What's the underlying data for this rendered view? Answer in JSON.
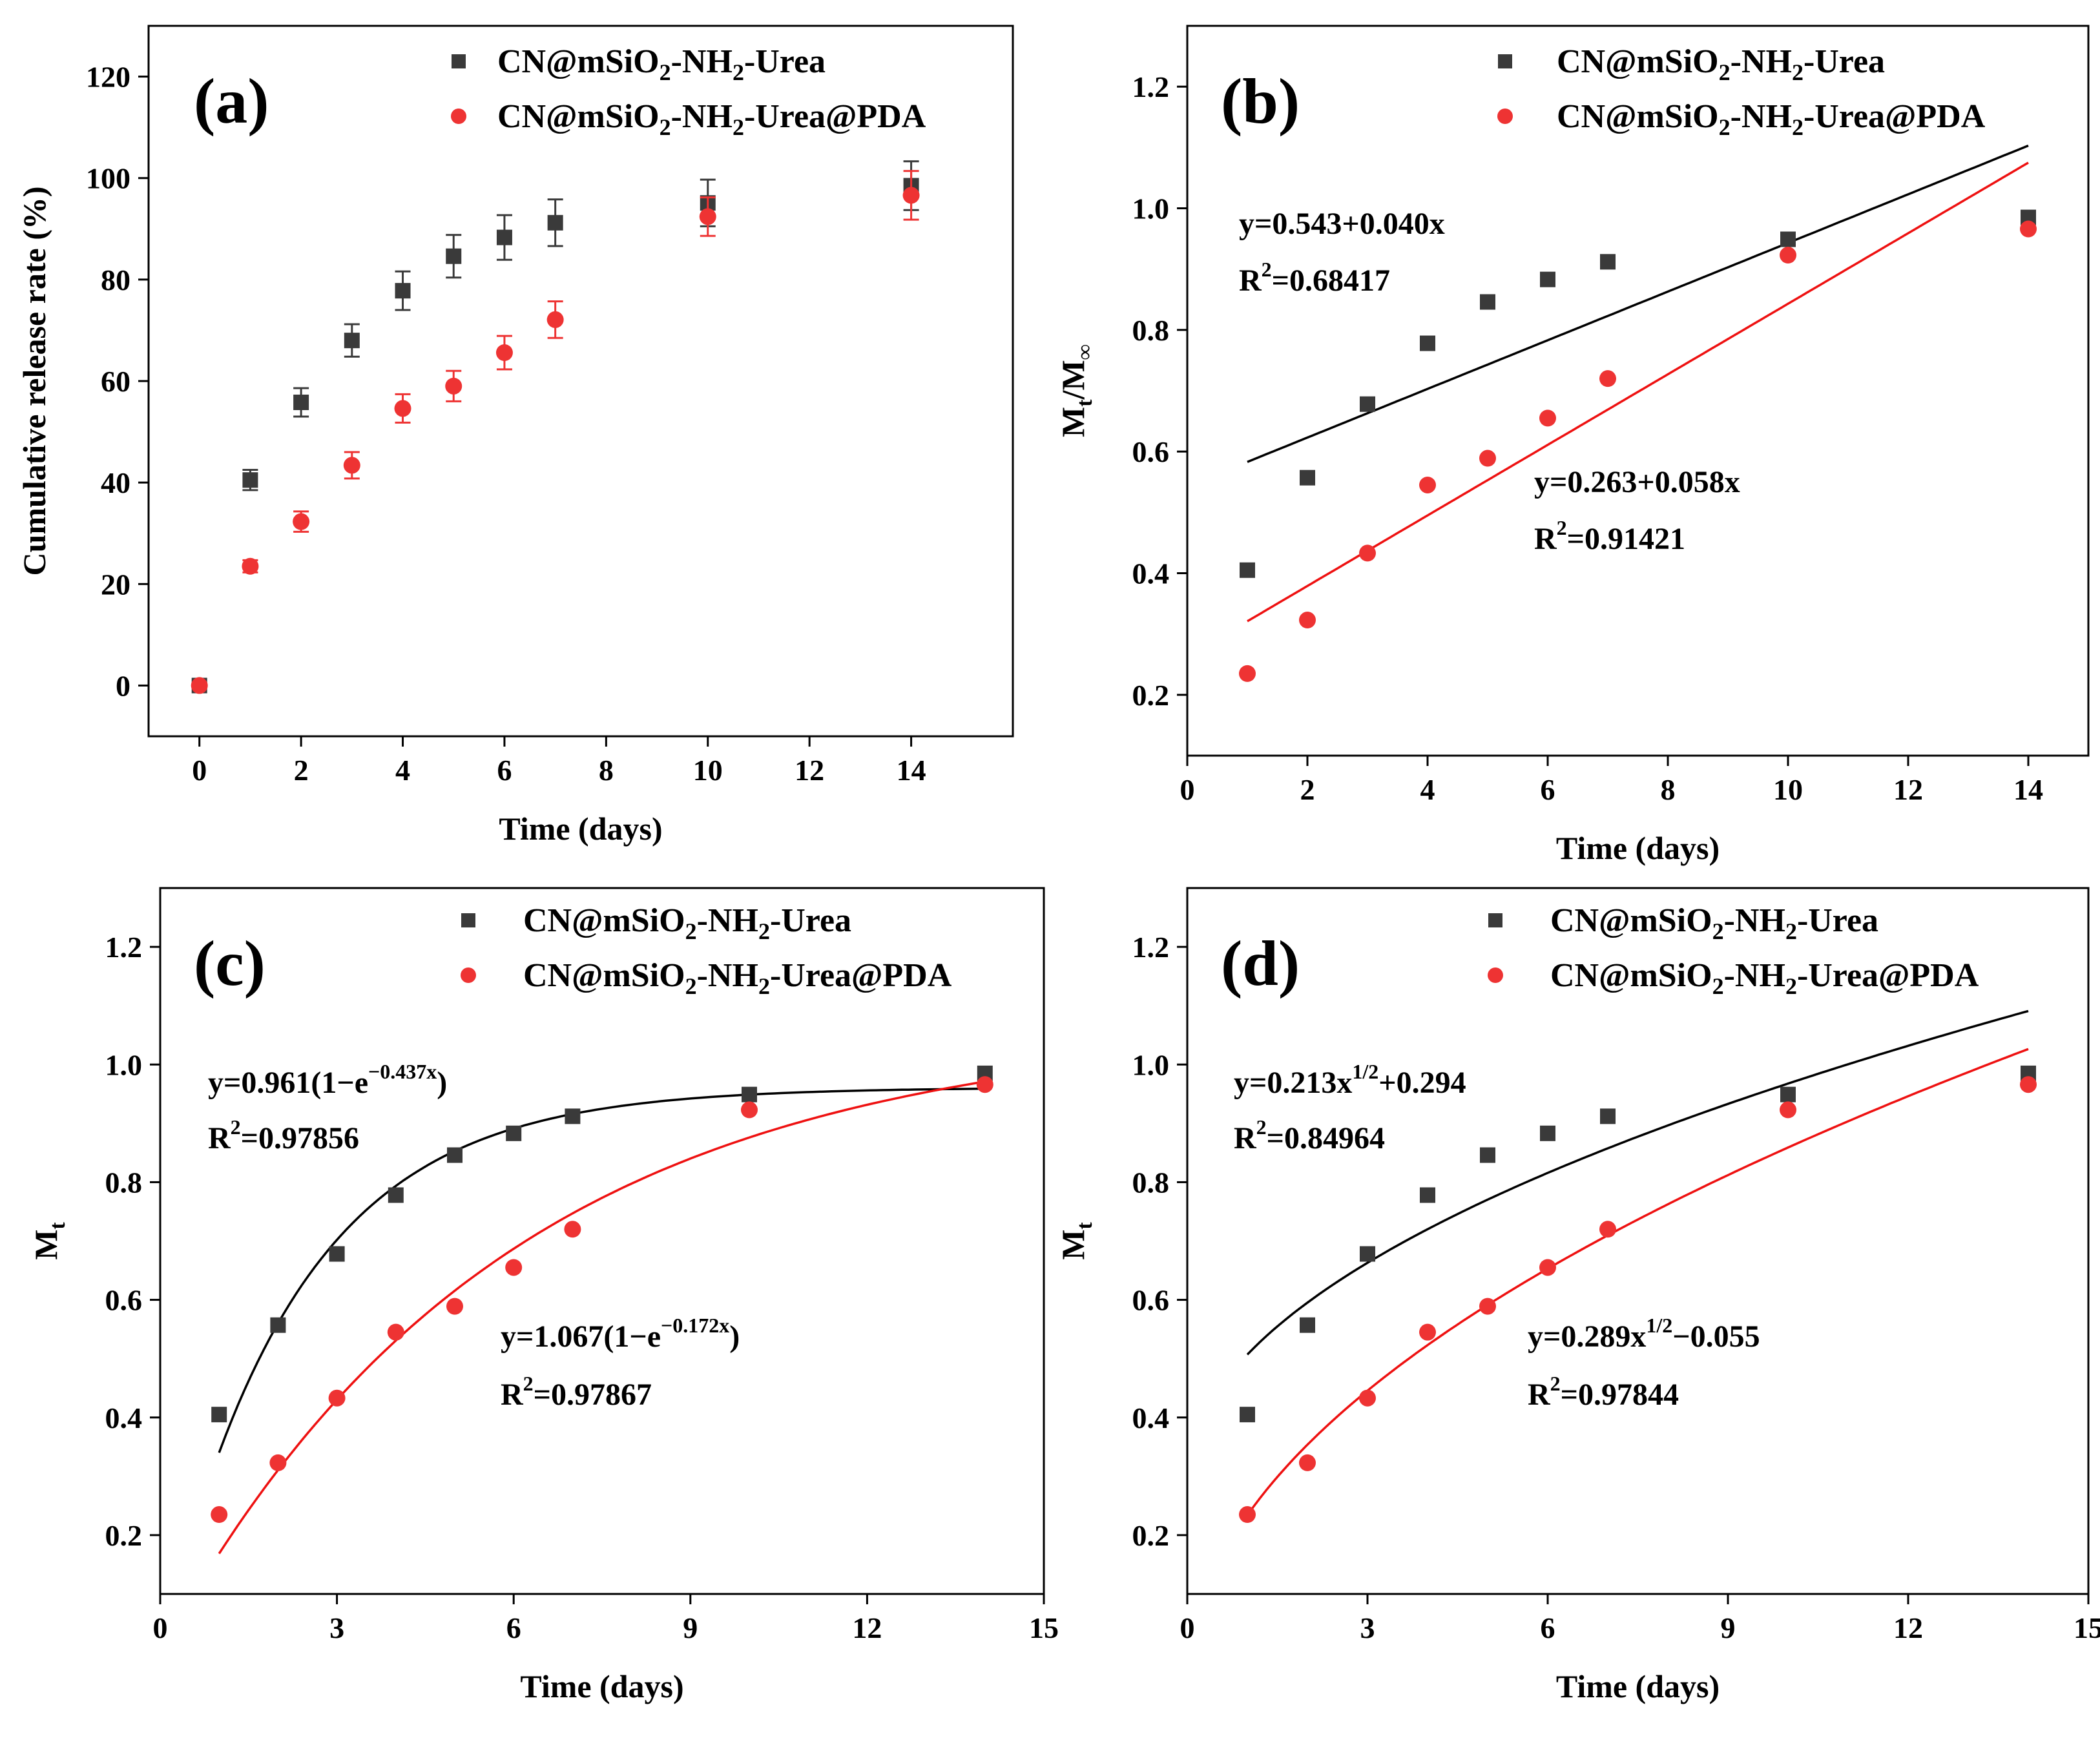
{
  "colors": {
    "black_series": "#3a3a3a",
    "red_series": "#ee3333",
    "axis": "#000000"
  },
  "legend": {
    "series1": {
      "prefix": "CN@mSiO",
      "sub": "2",
      "suffix": "-NH",
      "sub2": "2",
      "tail": "-Urea"
    },
    "series2": {
      "prefix": "CN@mSiO",
      "sub": "2",
      "suffix": "-NH",
      "sub2": "2",
      "tail": "-Urea@PDA"
    }
  },
  "chart_data": [
    {
      "panel": "(a)",
      "type": "scatter",
      "xlabel": "Time (days)",
      "ylabel": "Cumulative release rate (%)",
      "xlim": [
        -1,
        16
      ],
      "ylim": [
        -10,
        130
      ],
      "xticks": [
        0,
        2,
        4,
        6,
        8,
        10,
        12,
        14
      ],
      "yticks": [
        0,
        20,
        40,
        60,
        80,
        100,
        120
      ],
      "series": [
        {
          "name": "CN@mSiO2-NH2-Urea",
          "marker": "square",
          "color": "black",
          "x": [
            0,
            1,
            2,
            3,
            4,
            5,
            6,
            7,
            10,
            14
          ],
          "y": [
            0,
            40.5,
            55.8,
            68.0,
            77.8,
            84.6,
            88.3,
            91.2,
            95.1,
            98.5
          ],
          "err": [
            0.5,
            2.0,
            2.8,
            3.2,
            3.8,
            4.2,
            4.4,
            4.6,
            4.6,
            4.8
          ]
        },
        {
          "name": "CN@mSiO2-NH2-Urea@PDA",
          "marker": "circle",
          "color": "red",
          "x": [
            0,
            1,
            2,
            3,
            4,
            5,
            6,
            7,
            10,
            14
          ],
          "y": [
            0,
            23.5,
            32.3,
            43.4,
            54.6,
            59.0,
            65.6,
            72.1,
            92.4,
            96.6
          ],
          "err": [
            0.5,
            1.2,
            2.0,
            2.6,
            2.8,
            3.0,
            3.3,
            3.6,
            3.8,
            4.8
          ]
        }
      ]
    },
    {
      "panel": "(b)",
      "type": "scatter",
      "xlabel": "Time (days)",
      "ylabel_main": "M",
      "ylabel_sub1": "t",
      "ylabel_mid": "/M",
      "ylabel_sub2": "∞",
      "xlim": [
        0,
        15
      ],
      "ylim": [
        0.1,
        1.3
      ],
      "xticks": [
        0,
        2,
        4,
        6,
        8,
        10,
        12,
        14
      ],
      "yticks": [
        0.2,
        0.4,
        0.6,
        0.8,
        1.0,
        1.2
      ],
      "series": [
        {
          "name": "CN@mSiO2-NH2-Urea",
          "marker": "square",
          "color": "black",
          "x": [
            1,
            2,
            3,
            4,
            5,
            6,
            7,
            10,
            14
          ],
          "y": [
            0.405,
            0.557,
            0.678,
            0.778,
            0.846,
            0.883,
            0.912,
            0.949,
            0.985
          ]
        },
        {
          "name": "CN@mSiO2-NH2-Urea@PDA",
          "marker": "circle",
          "color": "red",
          "x": [
            1,
            2,
            3,
            4,
            5,
            6,
            7,
            10,
            14
          ],
          "y": [
            0.235,
            0.323,
            0.433,
            0.545,
            0.589,
            0.655,
            0.72,
            0.923,
            0.966
          ]
        }
      ],
      "fits": [
        {
          "color": "black",
          "model": "linear",
          "a": 0.543,
          "b": 0.04,
          "x_range": [
            1,
            14
          ],
          "eq_text": "y=0.543+0.040x",
          "r2_value": "=0.68417"
        },
        {
          "color": "red",
          "model": "linear",
          "a": 0.263,
          "b": 0.058,
          "x_range": [
            1,
            14
          ],
          "eq_text": "y=0.263+0.058x",
          "r2_value": "=0.91421"
        }
      ]
    },
    {
      "panel": "(c)",
      "type": "scatter",
      "xlabel": "Time (days)",
      "ylabel_main": "M",
      "ylabel_sub1": "t",
      "xlim": [
        0,
        15
      ],
      "ylim": [
        0.1,
        1.3
      ],
      "xticks": [
        0,
        3,
        6,
        9,
        12,
        15
      ],
      "yticks": [
        0.2,
        0.4,
        0.6,
        0.8,
        1.0,
        1.2
      ],
      "series": [
        {
          "name": "CN@mSiO2-NH2-Urea",
          "marker": "square",
          "color": "black",
          "x": [
            1,
            2,
            3,
            4,
            5,
            6,
            7,
            10,
            14
          ],
          "y": [
            0.405,
            0.557,
            0.678,
            0.778,
            0.846,
            0.883,
            0.912,
            0.949,
            0.985
          ]
        },
        {
          "name": "CN@mSiO2-NH2-Urea@PDA",
          "marker": "circle",
          "color": "red",
          "x": [
            1,
            2,
            3,
            4,
            5,
            6,
            7,
            10,
            14
          ],
          "y": [
            0.235,
            0.323,
            0.433,
            0.545,
            0.589,
            0.655,
            0.72,
            0.923,
            0.966
          ]
        }
      ],
      "fits": [
        {
          "color": "black",
          "model": "exp",
          "a": 0.961,
          "b": 0.437,
          "x_range": [
            1,
            14
          ],
          "eq_pre": "y=0.961(1−e",
          "eq_sup": "−0.437x",
          "eq_post": ")",
          "r2_value": "=0.97856"
        },
        {
          "color": "red",
          "model": "exp",
          "a": 1.067,
          "b": 0.172,
          "x_range": [
            1,
            14
          ],
          "eq_pre": "y=1.067(1−e",
          "eq_sup": "−0.172x",
          "eq_post": ")",
          "r2_value": "=0.97867"
        }
      ]
    },
    {
      "panel": "(d)",
      "type": "scatter",
      "xlabel": "Time (days)",
      "ylabel_main": "M",
      "ylabel_sub1": "t",
      "xlim": [
        0,
        15
      ],
      "ylim": [
        0.1,
        1.3
      ],
      "xticks": [
        0,
        3,
        6,
        9,
        12,
        15
      ],
      "yticks": [
        0.2,
        0.4,
        0.6,
        0.8,
        1.0,
        1.2
      ],
      "series": [
        {
          "name": "CN@mSiO2-NH2-Urea",
          "marker": "square",
          "color": "black",
          "x": [
            1,
            2,
            3,
            4,
            5,
            6,
            7,
            10,
            14
          ],
          "y": [
            0.405,
            0.557,
            0.678,
            0.778,
            0.846,
            0.883,
            0.912,
            0.949,
            0.985
          ]
        },
        {
          "name": "CN@mSiO2-NH2-Urea@PDA",
          "marker": "circle",
          "color": "red",
          "x": [
            1,
            2,
            3,
            4,
            5,
            6,
            7,
            10,
            14
          ],
          "y": [
            0.235,
            0.323,
            0.433,
            0.545,
            0.589,
            0.655,
            0.72,
            0.923,
            0.966
          ]
        }
      ],
      "fits": [
        {
          "color": "black",
          "model": "sqrt",
          "a": 0.213,
          "b": 0.294,
          "x_range": [
            1,
            14
          ],
          "eq_pre": "y=0.213x",
          "eq_sup": "1/2",
          "eq_post": "+0.294",
          "r2_value": "=0.84964"
        },
        {
          "color": "red",
          "model": "sqrt",
          "a": 0.289,
          "b": -0.055,
          "x_range": [
            1,
            14
          ],
          "eq_pre": "y=0.289x",
          "eq_sup": "1/2",
          "eq_post": "−0.055",
          "r2_value": "=0.97844"
        }
      ]
    }
  ]
}
